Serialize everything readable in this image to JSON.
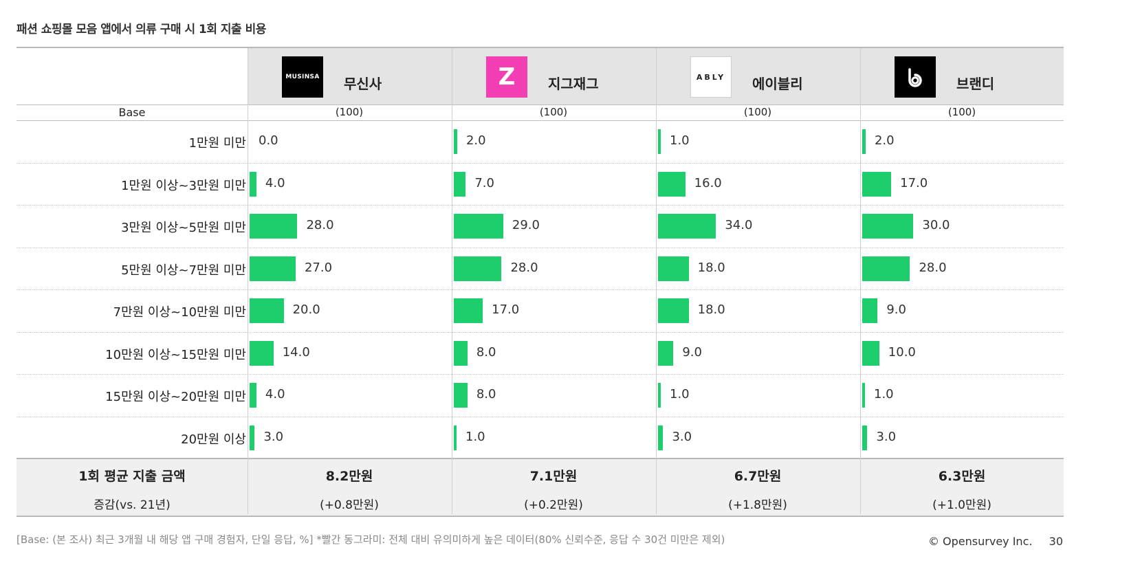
{
  "title": "패션 쇼핑몰 모음 앱에서 의류 구매 시 1회 지출 비용",
  "base_label": "Base",
  "brands": [
    {
      "name": "무신사",
      "logo_text": "MUSINSA",
      "logo_icon": "musinsa-logo",
      "logo_bg": "#000000",
      "logo_fg": "#ffffff",
      "base": "(100)",
      "avg": "8.2만원",
      "change": "(+0.8만원)"
    },
    {
      "name": "지그재그",
      "logo_text": "Z",
      "logo_icon": "zigzag-logo",
      "logo_bg": "#f43fb4",
      "logo_fg": "#ffffff",
      "base": "(100)",
      "avg": "7.1만원",
      "change": "(+0.2만원)"
    },
    {
      "name": "에이블리",
      "logo_text": "ABLY",
      "logo_icon": "ably-logo",
      "logo_bg": "#ffffff",
      "logo_fg": "#222222",
      "base": "(100)",
      "avg": "6.7만원",
      "change": "(+1.8만원)"
    },
    {
      "name": "브랜디",
      "logo_text": "",
      "logo_icon": "brandi-logo",
      "logo_bg": "#000000",
      "logo_fg": "#ffffff",
      "base": "(100)",
      "avg": "6.3만원",
      "change": "(+1.0만원)"
    }
  ],
  "chart_data": {
    "type": "bar",
    "orientation": "horizontal",
    "categories": [
      "1만원 미만",
      "1만원 이상~3만원 미만",
      "3만원 이상~5만원 미만",
      "5만원 이상~7만원 미만",
      "7만원 이상~10만원 미만",
      "10만원 이상~15만원 미만",
      "15만원 이상~20만원 미만",
      "20만원 이상"
    ],
    "series": [
      {
        "name": "무신사",
        "values": [
          0.0,
          4.0,
          28.0,
          27.0,
          20.0,
          14.0,
          4.0,
          3.0
        ]
      },
      {
        "name": "지그재그",
        "values": [
          2.0,
          7.0,
          29.0,
          28.0,
          17.0,
          8.0,
          8.0,
          1.0
        ]
      },
      {
        "name": "에이블리",
        "values": [
          1.0,
          16.0,
          34.0,
          18.0,
          18.0,
          9.0,
          1.0,
          3.0
        ]
      },
      {
        "name": "브랜디",
        "values": [
          2.0,
          17.0,
          30.0,
          28.0,
          9.0,
          10.0,
          1.0,
          3.0
        ]
      }
    ],
    "bar_color": "#1ecd6c"
  },
  "summary": {
    "avg_label": "1회 평균 지출 금액",
    "change_label": "증감(vs. 21년)"
  },
  "footnote": "[Base: (본 조사) 최근 3개월 내 해당 앱 구매 경험자, 단일 응답, %] *빨간 동그라미: 전체 대비 유의미하게 높은 데이터(80% 신뢰수준, 응답 수 30건 미만은 제외)",
  "copyright": "© Opensurvey Inc.",
  "page_number": "30"
}
